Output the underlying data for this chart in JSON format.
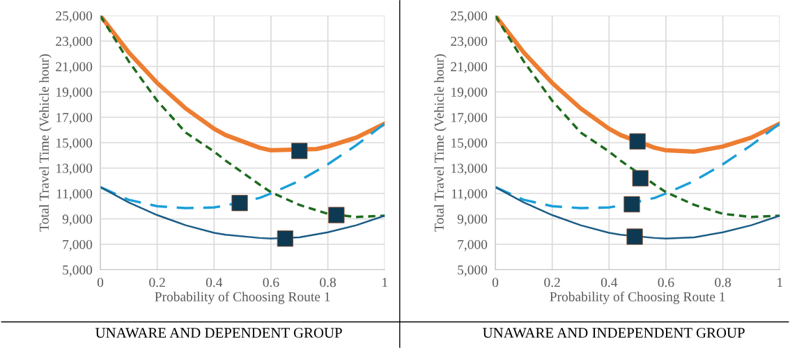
{
  "chart_data": [
    {
      "type": "line",
      "xlabel": "Probability of Choosing Route 1",
      "ylabel": "Total Travel Time (Vehicle hour)",
      "xlim": [
        0,
        1
      ],
      "ylim": [
        5000,
        25000
      ],
      "xticks": [
        0,
        0.2,
        0.4,
        0.6,
        0.8,
        1
      ],
      "yticks": [
        {
          "value": 5000,
          "label": "5,000"
        },
        {
          "value": 7000,
          "label": "7,000"
        },
        {
          "value": 9000,
          "label": "9,000"
        },
        {
          "value": 11000,
          "label": "11,000"
        },
        {
          "value": 13000,
          "label": "13,000"
        },
        {
          "value": 15000,
          "label": "15,000"
        },
        {
          "value": 17000,
          "label": "17,000"
        },
        {
          "value": 19000,
          "label": "19,000"
        },
        {
          "value": 21000,
          "label": "21,000"
        },
        {
          "value": 23000,
          "label": "23,000"
        },
        {
          "value": 25000,
          "label": "25,000"
        }
      ],
      "grid": true,
      "legend": false,
      "annotations": [
        "UNAWARE AND DEPENDENT GROUP"
      ],
      "x": [
        0,
        0.1,
        0.2,
        0.3,
        0.4,
        0.44,
        0.56,
        0.6,
        0.7,
        0.8,
        0.9,
        1
      ],
      "series": [
        {
          "color": "#ed7d31",
          "line_style": "solid",
          "x": [
            0,
            0.1,
            0.2,
            0.3,
            0.4,
            0.44,
            0.56,
            0.6,
            0.76,
            0.8,
            0.9,
            1
          ],
          "values": [
            25000,
            22100,
            19700,
            17700,
            16100,
            15600,
            14600,
            14400,
            14500,
            14700,
            15400,
            16500
          ]
        },
        {
          "color": "#1e6b1e",
          "line_style": "dotted",
          "values": [
            25000,
            21400,
            18300,
            15800,
            14300,
            13600,
            11700,
            11100,
            10100,
            9400,
            9150,
            9250
          ]
        },
        {
          "color": "#1a9fd9",
          "line_style": "dashed",
          "values": [
            11500,
            10500,
            10000,
            9850,
            9900,
            10050,
            10650,
            11000,
            12000,
            13300,
            14800,
            16500
          ]
        },
        {
          "color": "#1b5c85",
          "line_style": "solid",
          "values": [
            11500,
            10300,
            9300,
            8500,
            7900,
            7750,
            7500,
            7450,
            7550,
            7950,
            8500,
            9250
          ]
        },
        {
          "type": "scatter",
          "marker": "square",
          "color": "#0d3a52",
          "x": [
            0.49,
            0.7,
            0.65,
            0.83
          ],
          "values": [
            10250,
            14350,
            7450,
            9300
          ]
        }
      ]
    },
    {
      "type": "line",
      "xlabel": "Probability of Choosing Route 1",
      "ylabel": "Total Travel Time (Vehicle hour)",
      "xlim": [
        0,
        1
      ],
      "ylim": [
        5000,
        25000
      ],
      "xticks": [
        0,
        0.2,
        0.4,
        0.6,
        0.8,
        1
      ],
      "yticks": [
        {
          "value": 5000,
          "label": "5,000"
        },
        {
          "value": 7000,
          "label": "7,000"
        },
        {
          "value": 9000,
          "label": "9,000"
        },
        {
          "value": 11000,
          "label": "11,000"
        },
        {
          "value": 13000,
          "label": "13,000"
        },
        {
          "value": 15000,
          "label": "15,000"
        },
        {
          "value": 17000,
          "label": "17,000"
        },
        {
          "value": 19000,
          "label": "19,000"
        },
        {
          "value": 21000,
          "label": "21,000"
        },
        {
          "value": 23000,
          "label": "23,000"
        },
        {
          "value": 25000,
          "label": "25,000"
        }
      ],
      "grid": true,
      "legend": false,
      "annotations": [
        "UNAWARE AND INDEPENDENT GROUP"
      ],
      "x": [
        0,
        0.1,
        0.2,
        0.3,
        0.4,
        0.44,
        0.56,
        0.6,
        0.7,
        0.8,
        0.9,
        1
      ],
      "series": [
        {
          "color": "#ed7d31",
          "line_style": "solid",
          "values": [
            25000,
            22100,
            19700,
            17700,
            16100,
            15600,
            14600,
            14400,
            14300,
            14700,
            15400,
            16500
          ]
        },
        {
          "color": "#1e6b1e",
          "line_style": "dotted",
          "values": [
            25000,
            21400,
            18300,
            15800,
            14300,
            13600,
            11700,
            11100,
            10100,
            9400,
            9150,
            9250
          ]
        },
        {
          "color": "#1a9fd9",
          "line_style": "dashed",
          "values": [
            11500,
            10500,
            10000,
            9850,
            9900,
            10050,
            10650,
            11000,
            12000,
            13300,
            14800,
            16500
          ]
        },
        {
          "color": "#1b5c85",
          "line_style": "solid",
          "values": [
            11500,
            10300,
            9300,
            8500,
            7900,
            7750,
            7500,
            7450,
            7550,
            7950,
            8500,
            9250
          ]
        },
        {
          "type": "scatter",
          "marker": "square",
          "color": "#0d3a52",
          "x": [
            0.5,
            0.51,
            0.48,
            0.49
          ],
          "values": [
            15100,
            12200,
            10150,
            7600
          ]
        }
      ]
    }
  ]
}
